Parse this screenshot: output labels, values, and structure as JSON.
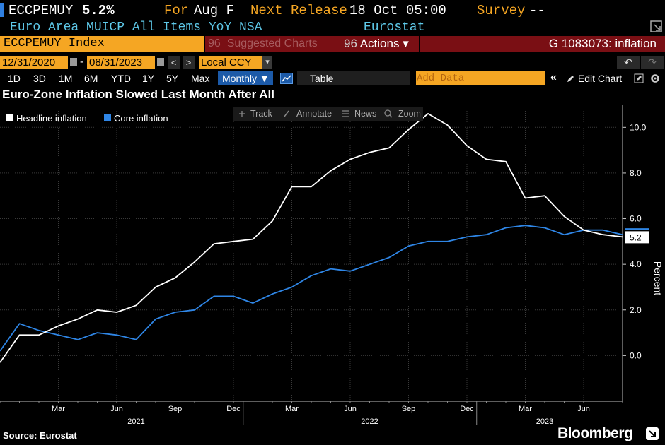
{
  "header": {
    "ticker": "ECCPEMUY",
    "last_value": "5.2%",
    "period_label": "For",
    "period_value": "Aug F",
    "next_release_label": "Next Release",
    "next_release_value": "18 Oct 05:00",
    "survey_label": "Survey",
    "survey_value": "--",
    "description": "Euro Area MUICP All Items YoY NSA",
    "source_name": "Eurostat"
  },
  "command_bar": {
    "security": "ECCPEMUY Index",
    "suggested_charts_label": "Suggested Charts",
    "suggested_num": "96",
    "actions_num": "96",
    "actions_label": "Actions",
    "actions_caret": "▾",
    "graph_code": "G 1083073: inflation"
  },
  "toolbar": {
    "start_date": "12/31/2020",
    "date_sep": "-",
    "end_date": "08/31/2023",
    "prev_label": "<",
    "next_label": ">",
    "currency": "Local CCY",
    "currency_caret": "▾",
    "undo_label": "↶",
    "redo_label": "↷"
  },
  "ranges": [
    "1D",
    "3D",
    "1M",
    "6M",
    "YTD",
    "1Y",
    "5Y",
    "Max"
  ],
  "frequency": "Monthly ▼",
  "table_label": "Table",
  "add_data_placeholder": "Add Data",
  "collapse_label": "«",
  "edit_chart_label": "Edit Chart",
  "chart_tools": [
    "Track",
    "Annotate",
    "News",
    "Zoom"
  ],
  "source_text": "Source: Eurostat",
  "brand": "Bloomberg",
  "colors": {
    "headline": "#ffffff",
    "core": "#2f86e6",
    "accent_orange": "#f5a623",
    "command_red": "#7a0f14",
    "range_blue": "#1c5aa8"
  },
  "chart_data": {
    "type": "line",
    "title": "Euro-Zone Inflation Slowed Last Month After All",
    "ylabel": "Percent",
    "ylim": [
      -2.0,
      11.0
    ],
    "yticks": [
      0.0,
      2.0,
      4.0,
      6.0,
      8.0,
      10.0
    ],
    "ytick_labels": [
      "0.0",
      "2.0",
      "4.0",
      "6.0",
      "8.0",
      "10.0"
    ],
    "grid": true,
    "legend_position": "top-left",
    "x": [
      "2020-12",
      "2021-01",
      "2021-02",
      "2021-03",
      "2021-04",
      "2021-05",
      "2021-06",
      "2021-07",
      "2021-08",
      "2021-09",
      "2021-10",
      "2021-11",
      "2021-12",
      "2022-01",
      "2022-02",
      "2022-03",
      "2022-04",
      "2022-05",
      "2022-06",
      "2022-07",
      "2022-08",
      "2022-09",
      "2022-10",
      "2022-11",
      "2022-12",
      "2023-01",
      "2023-02",
      "2023-03",
      "2023-04",
      "2023-05",
      "2023-06",
      "2023-07",
      "2023-08"
    ],
    "x_tick_labels": [
      {
        "month": "2021-03",
        "label": "Mar"
      },
      {
        "month": "2021-06",
        "label": "Jun"
      },
      {
        "month": "2021-09",
        "label": "Sep"
      },
      {
        "month": "2021-12",
        "label": "Dec"
      },
      {
        "month": "2022-03",
        "label": "Mar"
      },
      {
        "month": "2022-06",
        "label": "Jun"
      },
      {
        "month": "2022-09",
        "label": "Sep"
      },
      {
        "month": "2022-12",
        "label": "Dec"
      },
      {
        "month": "2023-03",
        "label": "Mar"
      },
      {
        "month": "2023-06",
        "label": "Jun"
      }
    ],
    "year_labels": [
      {
        "year": "2021",
        "month": "2021-07"
      },
      {
        "year": "2022",
        "month": "2022-07"
      },
      {
        "year": "2023",
        "month": "2023-04"
      }
    ],
    "year_separators": [
      "2021-12",
      "2022-12"
    ],
    "series": [
      {
        "name": "Headline inflation",
        "color": "#ffffff",
        "values": [
          -0.3,
          0.9,
          0.9,
          1.3,
          1.6,
          2.0,
          1.9,
          2.2,
          3.0,
          3.4,
          4.1,
          4.9,
          5.0,
          5.1,
          5.9,
          7.4,
          7.4,
          8.1,
          8.6,
          8.9,
          9.1,
          9.9,
          10.6,
          10.1,
          9.2,
          8.6,
          8.5,
          6.9,
          7.0,
          6.1,
          5.5,
          5.3,
          5.2
        ]
      },
      {
        "name": "Core inflation",
        "color": "#2f86e6",
        "values": [
          0.2,
          1.4,
          1.1,
          0.9,
          0.7,
          1.0,
          0.9,
          0.7,
          1.6,
          1.9,
          2.0,
          2.6,
          2.6,
          2.3,
          2.7,
          3.0,
          3.5,
          3.8,
          3.7,
          4.0,
          4.3,
          4.8,
          5.0,
          5.0,
          5.2,
          5.3,
          5.6,
          5.7,
          5.6,
          5.3,
          5.5,
          5.5,
          5.3
        ]
      }
    ],
    "last_value_label": "5.2"
  }
}
